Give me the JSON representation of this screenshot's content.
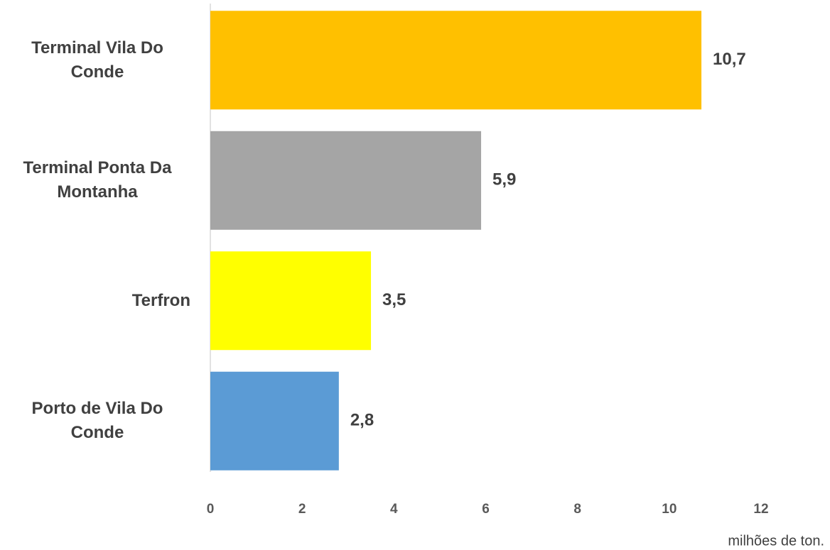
{
  "chart_data": {
    "type": "barh",
    "categories": [
      "Terminal Vila Do Conde",
      "Terminal Ponta Da Montanha",
      "Terfron",
      "Porto de Vila Do Conde"
    ],
    "values": [
      10.7,
      5.9,
      3.5,
      2.8
    ],
    "value_labels": [
      "10,7",
      "5,9",
      "3,5",
      "2,8"
    ],
    "colors": [
      "#FFC000",
      "#A5A5A5",
      "#FFFF00",
      "#5B9BD5"
    ],
    "xlabel": "milhões de ton.",
    "xlim": [
      0,
      12
    ],
    "xticks": [
      0,
      2,
      4,
      6,
      8,
      10,
      12
    ],
    "grid": false
  }
}
